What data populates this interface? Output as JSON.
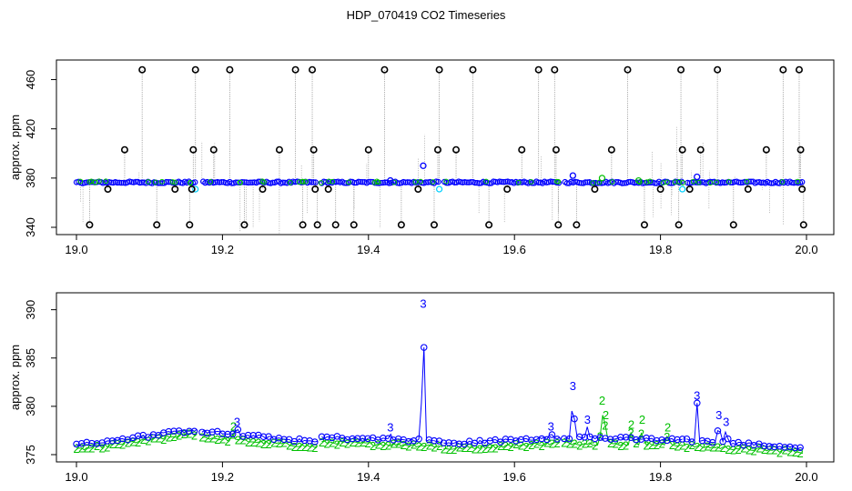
{
  "title": "HDP_070419  CO2 Timeseries",
  "colors": {
    "black": "#000000",
    "blue": "#0000ff",
    "green": "#00c000",
    "cyan": "#00d0ff",
    "gray": "#999999"
  },
  "chart_data": [
    {
      "type": "scatter",
      "ylabel": "approx. ppm",
      "xlim": [
        19.0,
        20.0
      ],
      "ylim": [
        340,
        470
      ],
      "xticks": [
        19.0,
        19.2,
        19.4,
        19.6,
        19.8,
        20.0
      ],
      "xtick_labels": [
        "19.0",
        "19.2",
        "19.4",
        "19.6",
        "19.8",
        "20.0"
      ],
      "yticks": [
        340,
        380,
        420,
        460
      ],
      "ytick_labels": [
        "340",
        "380",
        "420",
        "460"
      ],
      "baseline_ppm": 376.5,
      "outliers": [
        {
          "x": 19.018,
          "y": 342
        },
        {
          "x": 19.043,
          "y": 371
        },
        {
          "x": 19.066,
          "y": 403
        },
        {
          "x": 19.09,
          "y": 468
        },
        {
          "x": 19.11,
          "y": 342
        },
        {
          "x": 19.135,
          "y": 371
        },
        {
          "x": 19.155,
          "y": 342
        },
        {
          "x": 19.16,
          "y": 403
        },
        {
          "x": 19.163,
          "y": 468
        },
        {
          "x": 19.158,
          "y": 371
        },
        {
          "x": 19.188,
          "y": 403
        },
        {
          "x": 19.21,
          "y": 468
        },
        {
          "x": 19.23,
          "y": 342
        },
        {
          "x": 19.255,
          "y": 371
        },
        {
          "x": 19.278,
          "y": 403
        },
        {
          "x": 19.3,
          "y": 468
        },
        {
          "x": 19.31,
          "y": 342
        },
        {
          "x": 19.323,
          "y": 468
        },
        {
          "x": 19.325,
          "y": 403
        },
        {
          "x": 19.327,
          "y": 371
        },
        {
          "x": 19.33,
          "y": 342
        },
        {
          "x": 19.345,
          "y": 371
        },
        {
          "x": 19.355,
          "y": 342
        },
        {
          "x": 19.38,
          "y": 342
        },
        {
          "x": 19.4,
          "y": 403
        },
        {
          "x": 19.422,
          "y": 468
        },
        {
          "x": 19.445,
          "y": 342
        },
        {
          "x": 19.468,
          "y": 371
        },
        {
          "x": 19.49,
          "y": 342
        },
        {
          "x": 19.495,
          "y": 403
        },
        {
          "x": 19.497,
          "y": 468
        },
        {
          "x": 19.52,
          "y": 403
        },
        {
          "x": 19.543,
          "y": 468
        },
        {
          "x": 19.565,
          "y": 342
        },
        {
          "x": 19.59,
          "y": 371
        },
        {
          "x": 19.61,
          "y": 403
        },
        {
          "x": 19.633,
          "y": 468
        },
        {
          "x": 19.655,
          "y": 468
        },
        {
          "x": 19.657,
          "y": 403
        },
        {
          "x": 19.66,
          "y": 342
        },
        {
          "x": 19.685,
          "y": 342
        },
        {
          "x": 19.71,
          "y": 371
        },
        {
          "x": 19.733,
          "y": 403
        },
        {
          "x": 19.755,
          "y": 468
        },
        {
          "x": 19.778,
          "y": 342
        },
        {
          "x": 19.8,
          "y": 371
        },
        {
          "x": 19.825,
          "y": 342
        },
        {
          "x": 19.828,
          "y": 468
        },
        {
          "x": 19.83,
          "y": 403
        },
        {
          "x": 19.84,
          "y": 371
        },
        {
          "x": 19.855,
          "y": 403
        },
        {
          "x": 19.878,
          "y": 468
        },
        {
          "x": 19.9,
          "y": 342
        },
        {
          "x": 19.92,
          "y": 371
        },
        {
          "x": 19.945,
          "y": 403
        },
        {
          "x": 19.968,
          "y": 468
        },
        {
          "x": 19.99,
          "y": 468
        },
        {
          "x": 19.992,
          "y": 403
        },
        {
          "x": 19.994,
          "y": 371
        },
        {
          "x": 19.996,
          "y": 342
        }
      ],
      "blue_points": [
        {
          "x": 19.475,
          "y": 390
        },
        {
          "x": 19.68,
          "y": 382
        },
        {
          "x": 19.85,
          "y": 381
        },
        {
          "x": 19.43,
          "y": 378
        }
      ],
      "cyan_points": [
        {
          "x": 19.163,
          "y": 371
        },
        {
          "x": 19.497,
          "y": 371
        },
        {
          "x": 19.83,
          "y": 371
        }
      ],
      "green_points": [
        {
          "x": 19.72,
          "y": 380
        },
        {
          "x": 19.77,
          "y": 378
        }
      ]
    },
    {
      "type": "line",
      "ylabel": "approx. ppm",
      "xlim": [
        19.0,
        20.0
      ],
      "ylim": [
        375,
        391
      ],
      "xticks": [
        19.0,
        19.2,
        19.4,
        19.6,
        19.8,
        20.0
      ],
      "xtick_labels": [
        "19.0",
        "19.2",
        "19.4",
        "19.6",
        "19.8",
        "20.0"
      ],
      "yticks": [
        375,
        380,
        385,
        390
      ],
      "ytick_labels": [
        "375",
        "380",
        "385",
        "390"
      ],
      "gaps": [
        [
          19.165,
          19.172
        ],
        [
          19.33,
          19.336
        ],
        [
          19.497,
          19.503
        ],
        [
          19.662,
          19.668
        ],
        [
          19.83,
          19.836
        ]
      ],
      "series": [
        {
          "name": "3",
          "color": "#0000ff",
          "segments": [
            {
              "x0": 19.0,
              "x1": 19.165,
              "y0": 376.0,
              "y1": 377.6
            },
            {
              "x0": 19.172,
              "x1": 19.33,
              "y0": 377.4,
              "y1": 376.3
            },
            {
              "x0": 19.336,
              "x1": 19.497,
              "y0": 376.8,
              "y1": 376.4
            },
            {
              "x0": 19.503,
              "x1": 19.662,
              "y0": 376.1,
              "y1": 376.8
            },
            {
              "x0": 19.668,
              "x1": 19.83,
              "y0": 376.8,
              "y1": 376.5
            },
            {
              "x0": 19.836,
              "x1": 19.995,
              "y0": 376.5,
              "y1": 375.7
            }
          ],
          "spikes": [
            {
              "x": 19.43,
              "y": 377.2
            },
            {
              "x": 19.475,
              "y": 390.0
            },
            {
              "x": 19.68,
              "y": 381.5
            },
            {
              "x": 19.85,
              "y": 380.5
            },
            {
              "x": 19.88,
              "y": 378.5
            },
            {
              "x": 19.89,
              "y": 377.8
            },
            {
              "x": 19.22,
              "y": 377.8
            },
            {
              "x": 19.65,
              "y": 377.3
            },
            {
              "x": 19.7,
              "y": 378.0
            }
          ]
        },
        {
          "name": "2",
          "color": "#00c000",
          "segments": [
            {
              "x0": 19.0,
              "x1": 19.165,
              "y0": 375.5,
              "y1": 377.2
            },
            {
              "x0": 19.172,
              "x1": 19.33,
              "y0": 376.8,
              "y1": 375.8
            },
            {
              "x0": 19.336,
              "x1": 19.497,
              "y0": 376.3,
              "y1": 375.9
            },
            {
              "x0": 19.503,
              "x1": 19.662,
              "y0": 375.6,
              "y1": 376.2
            },
            {
              "x0": 19.668,
              "x1": 19.83,
              "y0": 376.2,
              "y1": 376.0
            },
            {
              "x0": 19.836,
              "x1": 19.995,
              "y0": 375.9,
              "y1": 375.3
            }
          ],
          "spikes": [
            {
              "x": 19.72,
              "y": 380.0
            },
            {
              "x": 19.725,
              "y": 378.5
            },
            {
              "x": 19.76,
              "y": 377.5
            },
            {
              "x": 19.775,
              "y": 378.0
            },
            {
              "x": 19.215,
              "y": 377.3
            },
            {
              "x": 19.81,
              "y": 377.2
            }
          ]
        }
      ]
    }
  ]
}
